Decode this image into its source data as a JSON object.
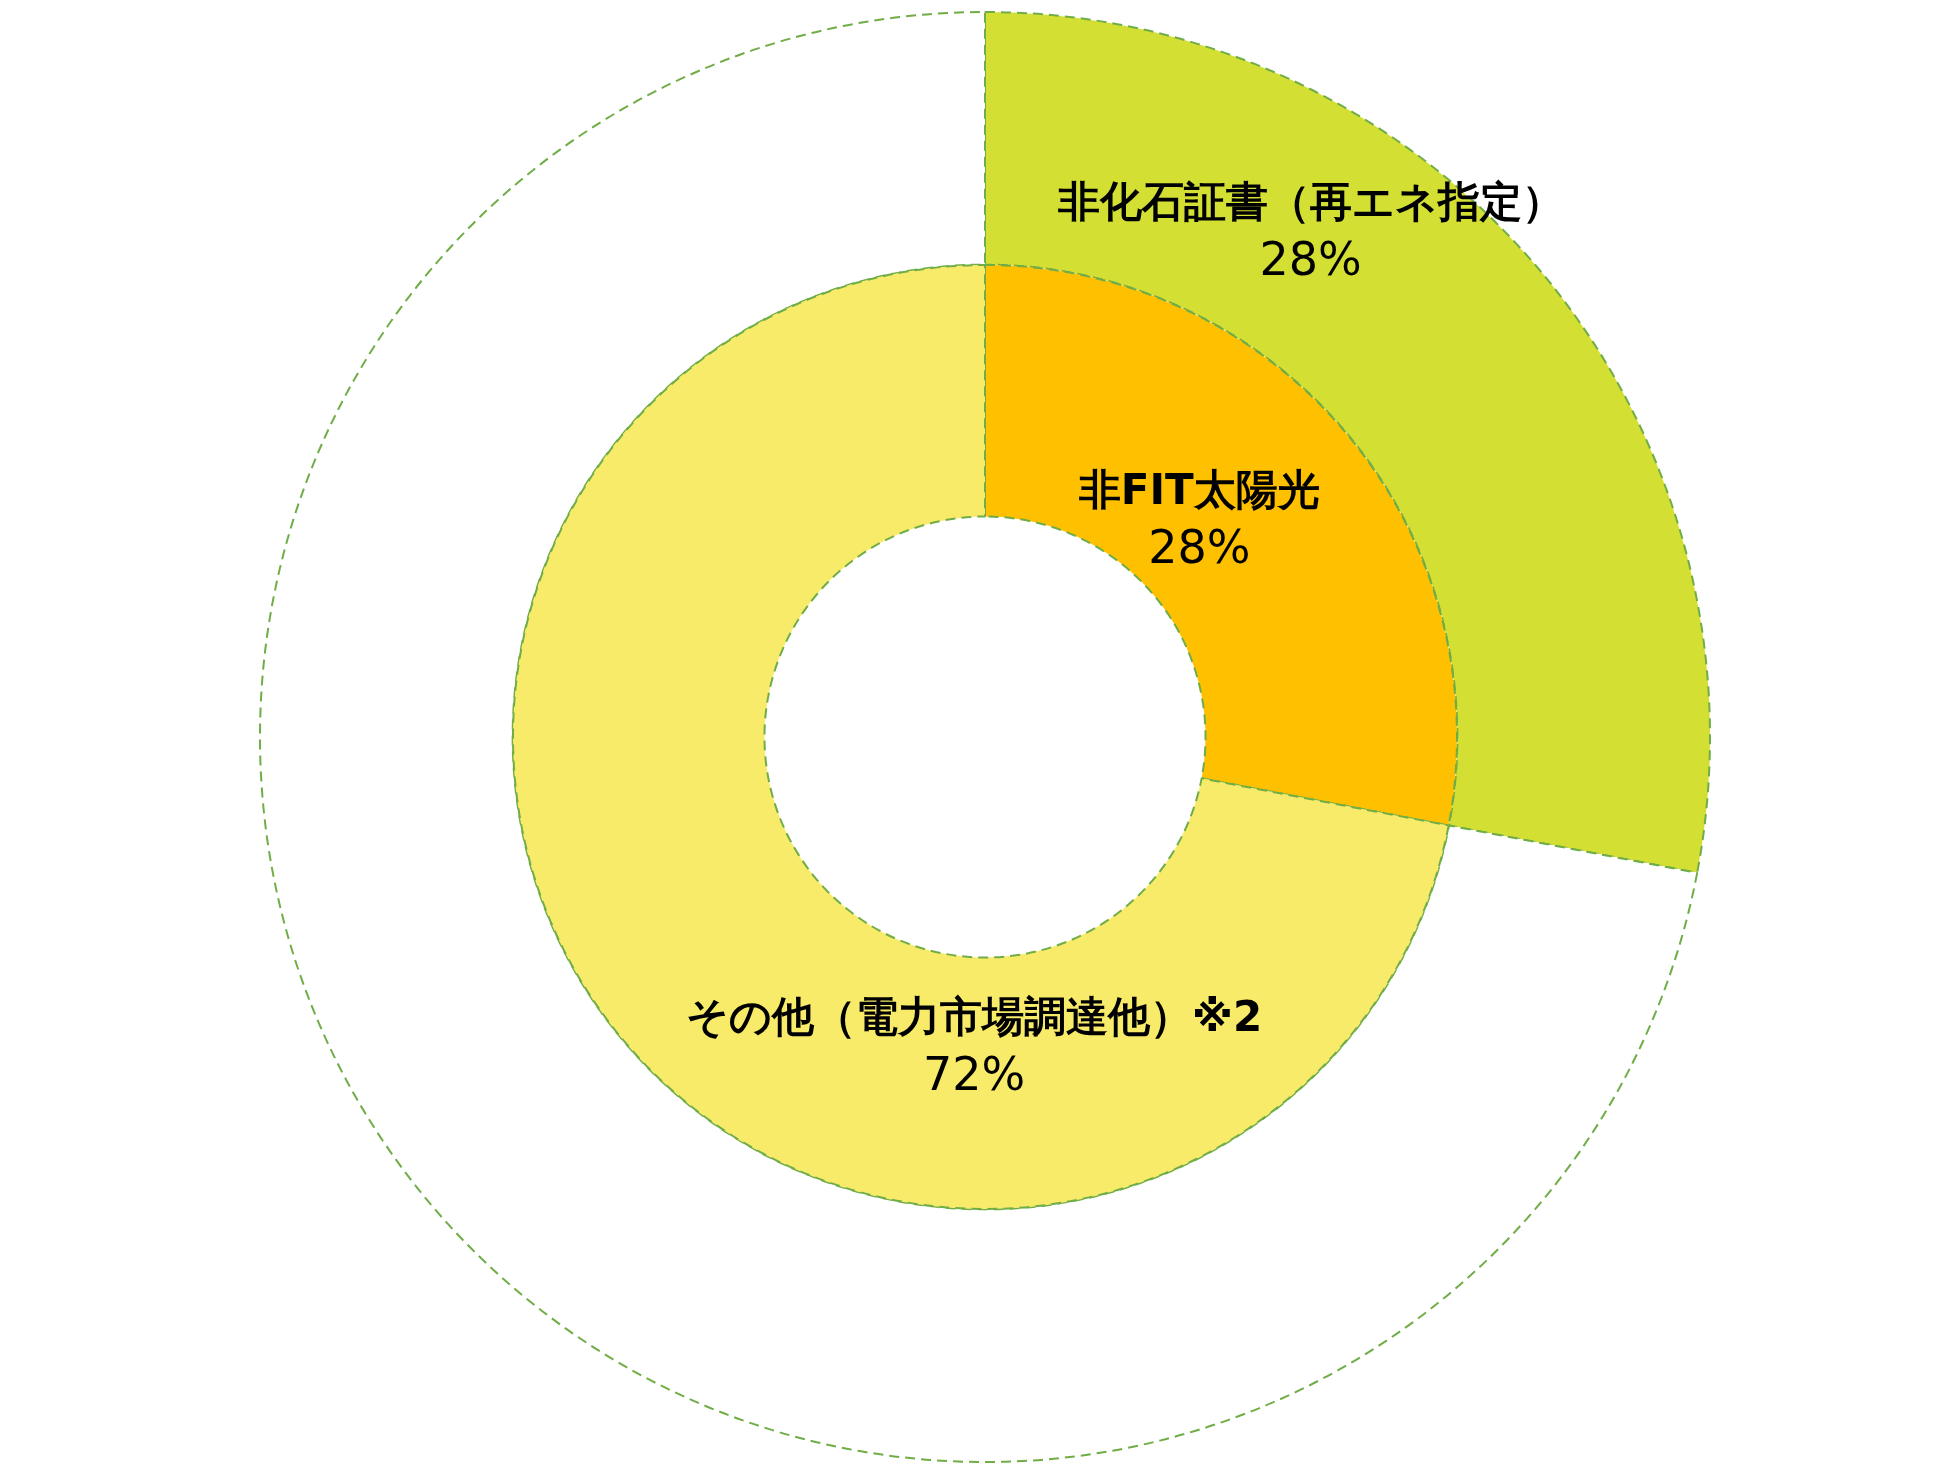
{
  "chart_data": [
    {
      "type": "donut",
      "legend": false,
      "data_labels": true,
      "categories": [
        "非化石証書（再エネ指定）",
        null
      ],
      "values": [
        28,
        72
      ],
      "value_labels": [
        "28%",
        null
      ],
      "colors": [
        "#d4df33",
        "#ffffff"
      ]
    },
    {
      "type": "donut",
      "legend": false,
      "data_labels": true,
      "categories": [
        "非FIT太陽光",
        "その他（電力市場調達他）※2"
      ],
      "values": [
        28,
        72
      ],
      "value_labels": [
        "28%",
        "72%"
      ],
      "colors": [
        "#ffc000",
        "#f8eb6a"
      ]
    }
  ]
}
